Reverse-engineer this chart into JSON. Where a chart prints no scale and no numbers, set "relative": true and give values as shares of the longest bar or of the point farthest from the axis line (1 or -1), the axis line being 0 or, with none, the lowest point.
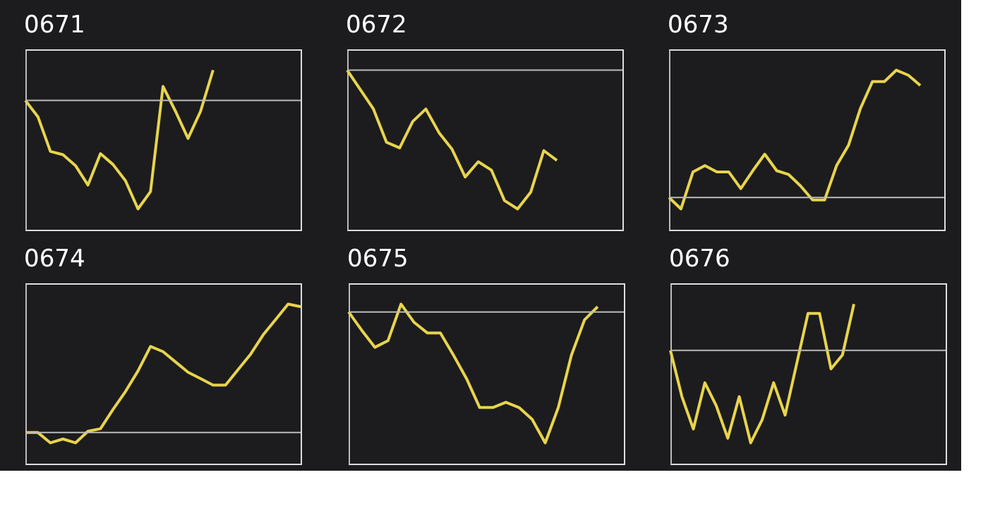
{
  "chart_data": [
    {
      "type": "line",
      "title": "0671",
      "relative": true,
      "categories": [
        null,
        null,
        null,
        null,
        null,
        null,
        null,
        null,
        null,
        null,
        null,
        null,
        null,
        null,
        null,
        null,
        null,
        null,
        null,
        null,
        null,
        null,
        null
      ],
      "series": [
        {
          "color": "#e8d44d",
          "values": [
            0,
            -0.15,
            -0.47,
            -0.5,
            -0.6,
            -0.78,
            -0.49,
            -0.59,
            -0.74,
            -1,
            -0.84,
            0.13,
            -0.1,
            -0.35,
            -0.1,
            0.28,
            null,
            null,
            null,
            null,
            null,
            null,
            null
          ]
        }
      ]
    },
    {
      "type": "line",
      "title": "0672",
      "relative": true,
      "categories": [
        null,
        null,
        null,
        null,
        null,
        null,
        null,
        null,
        null,
        null,
        null,
        null,
        null,
        null,
        null,
        null,
        null,
        null,
        null,
        null,
        null,
        null
      ],
      "series": [
        {
          "color": "#e8d44d",
          "values": [
            0,
            -0.14,
            -0.28,
            -0.52,
            -0.56,
            -0.37,
            -0.28,
            -0.45,
            -0.57,
            -0.77,
            -0.66,
            -0.72,
            -0.94,
            -1,
            -0.88,
            -0.58,
            -0.65,
            null,
            null,
            null,
            null,
            null
          ]
        }
      ]
    },
    {
      "type": "line",
      "title": "0673",
      "relative": true,
      "categories": [
        null,
        null,
        null,
        null,
        null,
        null,
        null,
        null,
        null,
        null,
        null,
        null,
        null,
        null,
        null,
        null,
        null,
        null,
        null,
        null,
        null,
        null,
        null,
        null
      ],
      "series": [
        {
          "color": "#e8d44d",
          "values": [
            0,
            -0.09,
            0.2,
            0.25,
            0.2,
            0.2,
            0.07,
            0.21,
            0.34,
            0.21,
            0.18,
            0.09,
            -0.02,
            -0.02,
            0.25,
            0.41,
            0.7,
            0.91,
            0.91,
            1,
            0.96,
            0.88,
            null,
            null
          ]
        }
      ]
    },
    {
      "type": "line",
      "title": "0674",
      "relative": true,
      "categories": [
        null,
        null,
        null,
        null,
        null,
        null,
        null,
        null,
        null,
        null,
        null,
        null,
        null,
        null,
        null,
        null,
        null,
        null,
        null,
        null,
        null,
        null,
        null
      ],
      "series": [
        {
          "color": "#e8d44d",
          "values": [
            0,
            0,
            -0.08,
            -0.05,
            -0.08,
            0.01,
            0.03,
            0.18,
            0.32,
            0.48,
            0.67,
            0.63,
            0.55,
            0.47,
            0.42,
            0.37,
            0.37,
            0.49,
            0.61,
            0.76,
            0.88,
            1,
            0.98
          ]
        }
      ]
    },
    {
      "type": "line",
      "title": "0675",
      "relative": true,
      "categories": [
        null,
        null,
        null,
        null,
        null,
        null,
        null,
        null,
        null,
        null,
        null,
        null,
        null,
        null,
        null,
        null,
        null,
        null,
        null,
        null,
        null,
        null
      ],
      "series": [
        {
          "color": "#e8d44d",
          "values": [
            0,
            -0.14,
            -0.27,
            -0.22,
            0.06,
            -0.08,
            -0.16,
            -0.16,
            -0.33,
            -0.51,
            -0.73,
            -0.73,
            -0.69,
            -0.73,
            -0.82,
            -1,
            -0.73,
            -0.33,
            -0.06,
            0.04,
            null,
            null
          ]
        }
      ]
    },
    {
      "type": "line",
      "title": "0676",
      "relative": true,
      "categories": [
        null,
        null,
        null,
        null,
        null,
        null,
        null,
        null,
        null,
        null,
        null,
        null,
        null,
        null,
        null,
        null,
        null,
        null,
        null,
        null,
        null,
        null,
        null,
        null,
        null
      ],
      "series": [
        {
          "color": "#e8d44d",
          "values": [
            0,
            -0.5,
            -0.85,
            -0.35,
            -0.6,
            -0.95,
            -0.5,
            -1,
            -0.75,
            -0.35,
            -0.7,
            -0.15,
            0.4,
            0.4,
            -0.2,
            -0.05,
            0.5,
            null,
            null,
            null,
            null,
            null,
            null,
            null,
            null
          ]
        }
      ]
    }
  ]
}
